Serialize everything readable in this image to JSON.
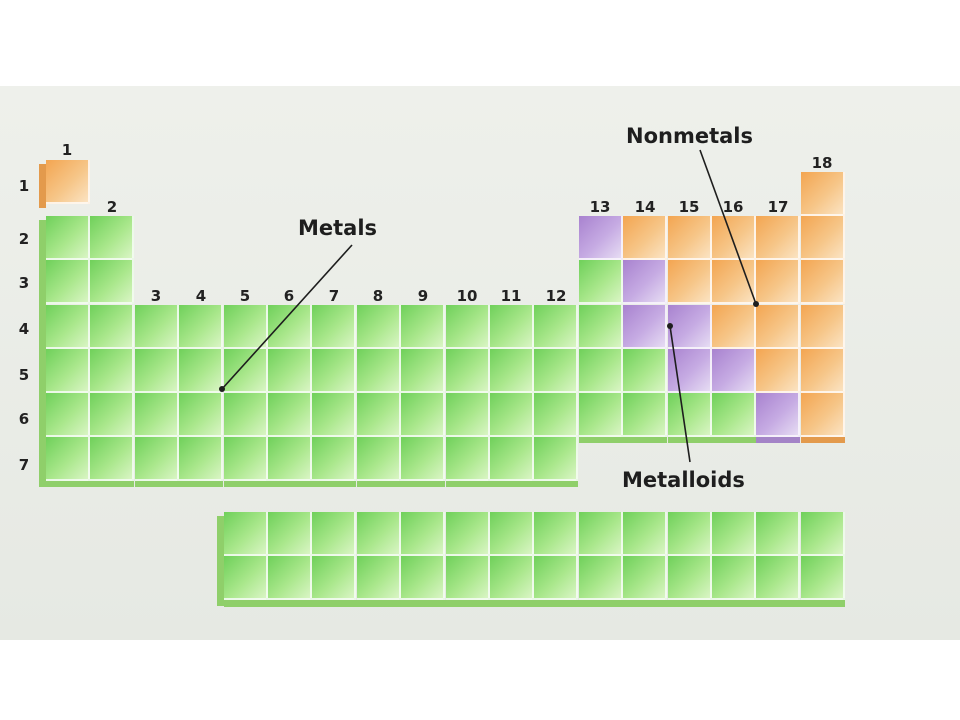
{
  "groups": [
    "1",
    "2",
    "3",
    "4",
    "5",
    "6",
    "7",
    "8",
    "9",
    "10",
    "11",
    "12",
    "13",
    "14",
    "15",
    "16",
    "17",
    "18"
  ],
  "periods": [
    "1",
    "2",
    "3",
    "4",
    "5",
    "6",
    "7"
  ],
  "labels": {
    "metals": "Metals",
    "nonmetals": "Nonmetals",
    "metalloids": "Metalloids"
  },
  "colors": {
    "metals": "#8fd66f",
    "nonmetals": "#f4b06a",
    "metalloids": "#b89ad9",
    "background": "#e9ece6"
  },
  "legend_categories": [
    "metal",
    "nonmetal",
    "metalloid"
  ]
}
